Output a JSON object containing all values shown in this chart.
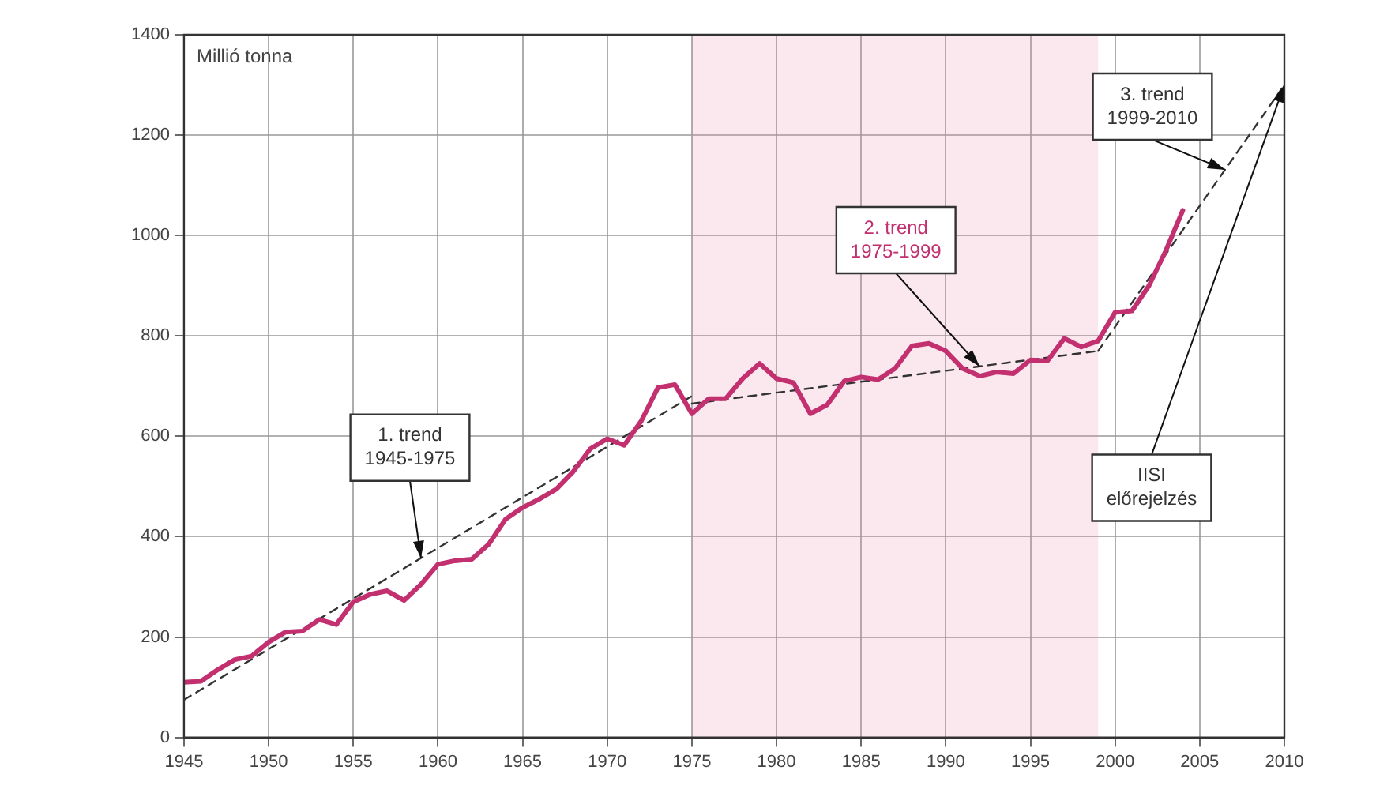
{
  "chart_data": {
    "type": "line",
    "ylabel": "Millió tonna",
    "x": [
      1945,
      1946,
      1947,
      1948,
      1949,
      1950,
      1951,
      1952,
      1953,
      1954,
      1955,
      1956,
      1957,
      1958,
      1959,
      1960,
      1961,
      1962,
      1963,
      1964,
      1965,
      1966,
      1967,
      1968,
      1969,
      1970,
      1971,
      1972,
      1973,
      1974,
      1975,
      1976,
      1977,
      1978,
      1979,
      1980,
      1981,
      1982,
      1983,
      1984,
      1985,
      1986,
      1987,
      1988,
      1989,
      1990,
      1991,
      1992,
      1993,
      1994,
      1995,
      1996,
      1997,
      1998,
      1999,
      2000,
      2001,
      2002,
      2003,
      2004
    ],
    "series": [
      {
        "color": "#c2306f",
        "values": [
          110,
          112,
          135,
          155,
          162,
          190,
          210,
          212,
          235,
          225,
          270,
          285,
          292,
          273,
          305,
          345,
          352,
          355,
          385,
          435,
          458,
          475,
          495,
          530,
          575,
          595,
          582,
          630,
          697,
          703,
          645,
          675,
          675,
          715,
          745,
          715,
          707,
          645,
          663,
          710,
          718,
          713,
          735,
          780,
          785,
          770,
          735,
          720,
          728,
          725,
          752,
          750,
          795,
          778,
          790,
          847,
          850,
          900,
          970,
          1050
        ]
      },
      {
        "type": "line",
        "color": "#333333",
        "line_style": "dashed",
        "marker": "none",
        "x": [
          1945,
          1975
        ],
        "values": [
          75,
          680
        ]
      },
      {
        "type": "line",
        "color": "#333333",
        "line_style": "dashed",
        "marker": "none",
        "x": [
          1975,
          1999
        ],
        "values": [
          665,
          770
        ]
      },
      {
        "type": "line",
        "color": "#333333",
        "line_style": "dashed",
        "marker": "none",
        "x": [
          1999,
          2010
        ],
        "values": [
          770,
          1300
        ]
      }
    ],
    "xlim": [
      1945,
      2010
    ],
    "xticks": [
      1945,
      1950,
      1955,
      1960,
      1965,
      1970,
      1975,
      1980,
      1985,
      1990,
      1995,
      2000,
      2005,
      2010
    ],
    "ylim": [
      0,
      1400
    ],
    "yticks": [
      0,
      200,
      400,
      600,
      800,
      1000,
      1200,
      1400
    ],
    "grid": true,
    "marker": "none",
    "line_style": "solid",
    "bands": [
      {
        "axis": "x",
        "from": 1975,
        "to": 1999,
        "color": "#e48aaa"
      }
    ],
    "annotations": [
      {
        "text": "1. trend\n1945-1975",
        "x": 1959,
        "y": 357
      },
      {
        "text": "2. trend\n1975-1999",
        "x": 1992,
        "y": 739
      },
      {
        "text": "3. trend\n1999-2010",
        "x": 2006.5,
        "y": 1131
      },
      {
        "text": "IISI\nelőrejelzés",
        "x": 2010,
        "y": 1300
      }
    ]
  }
}
